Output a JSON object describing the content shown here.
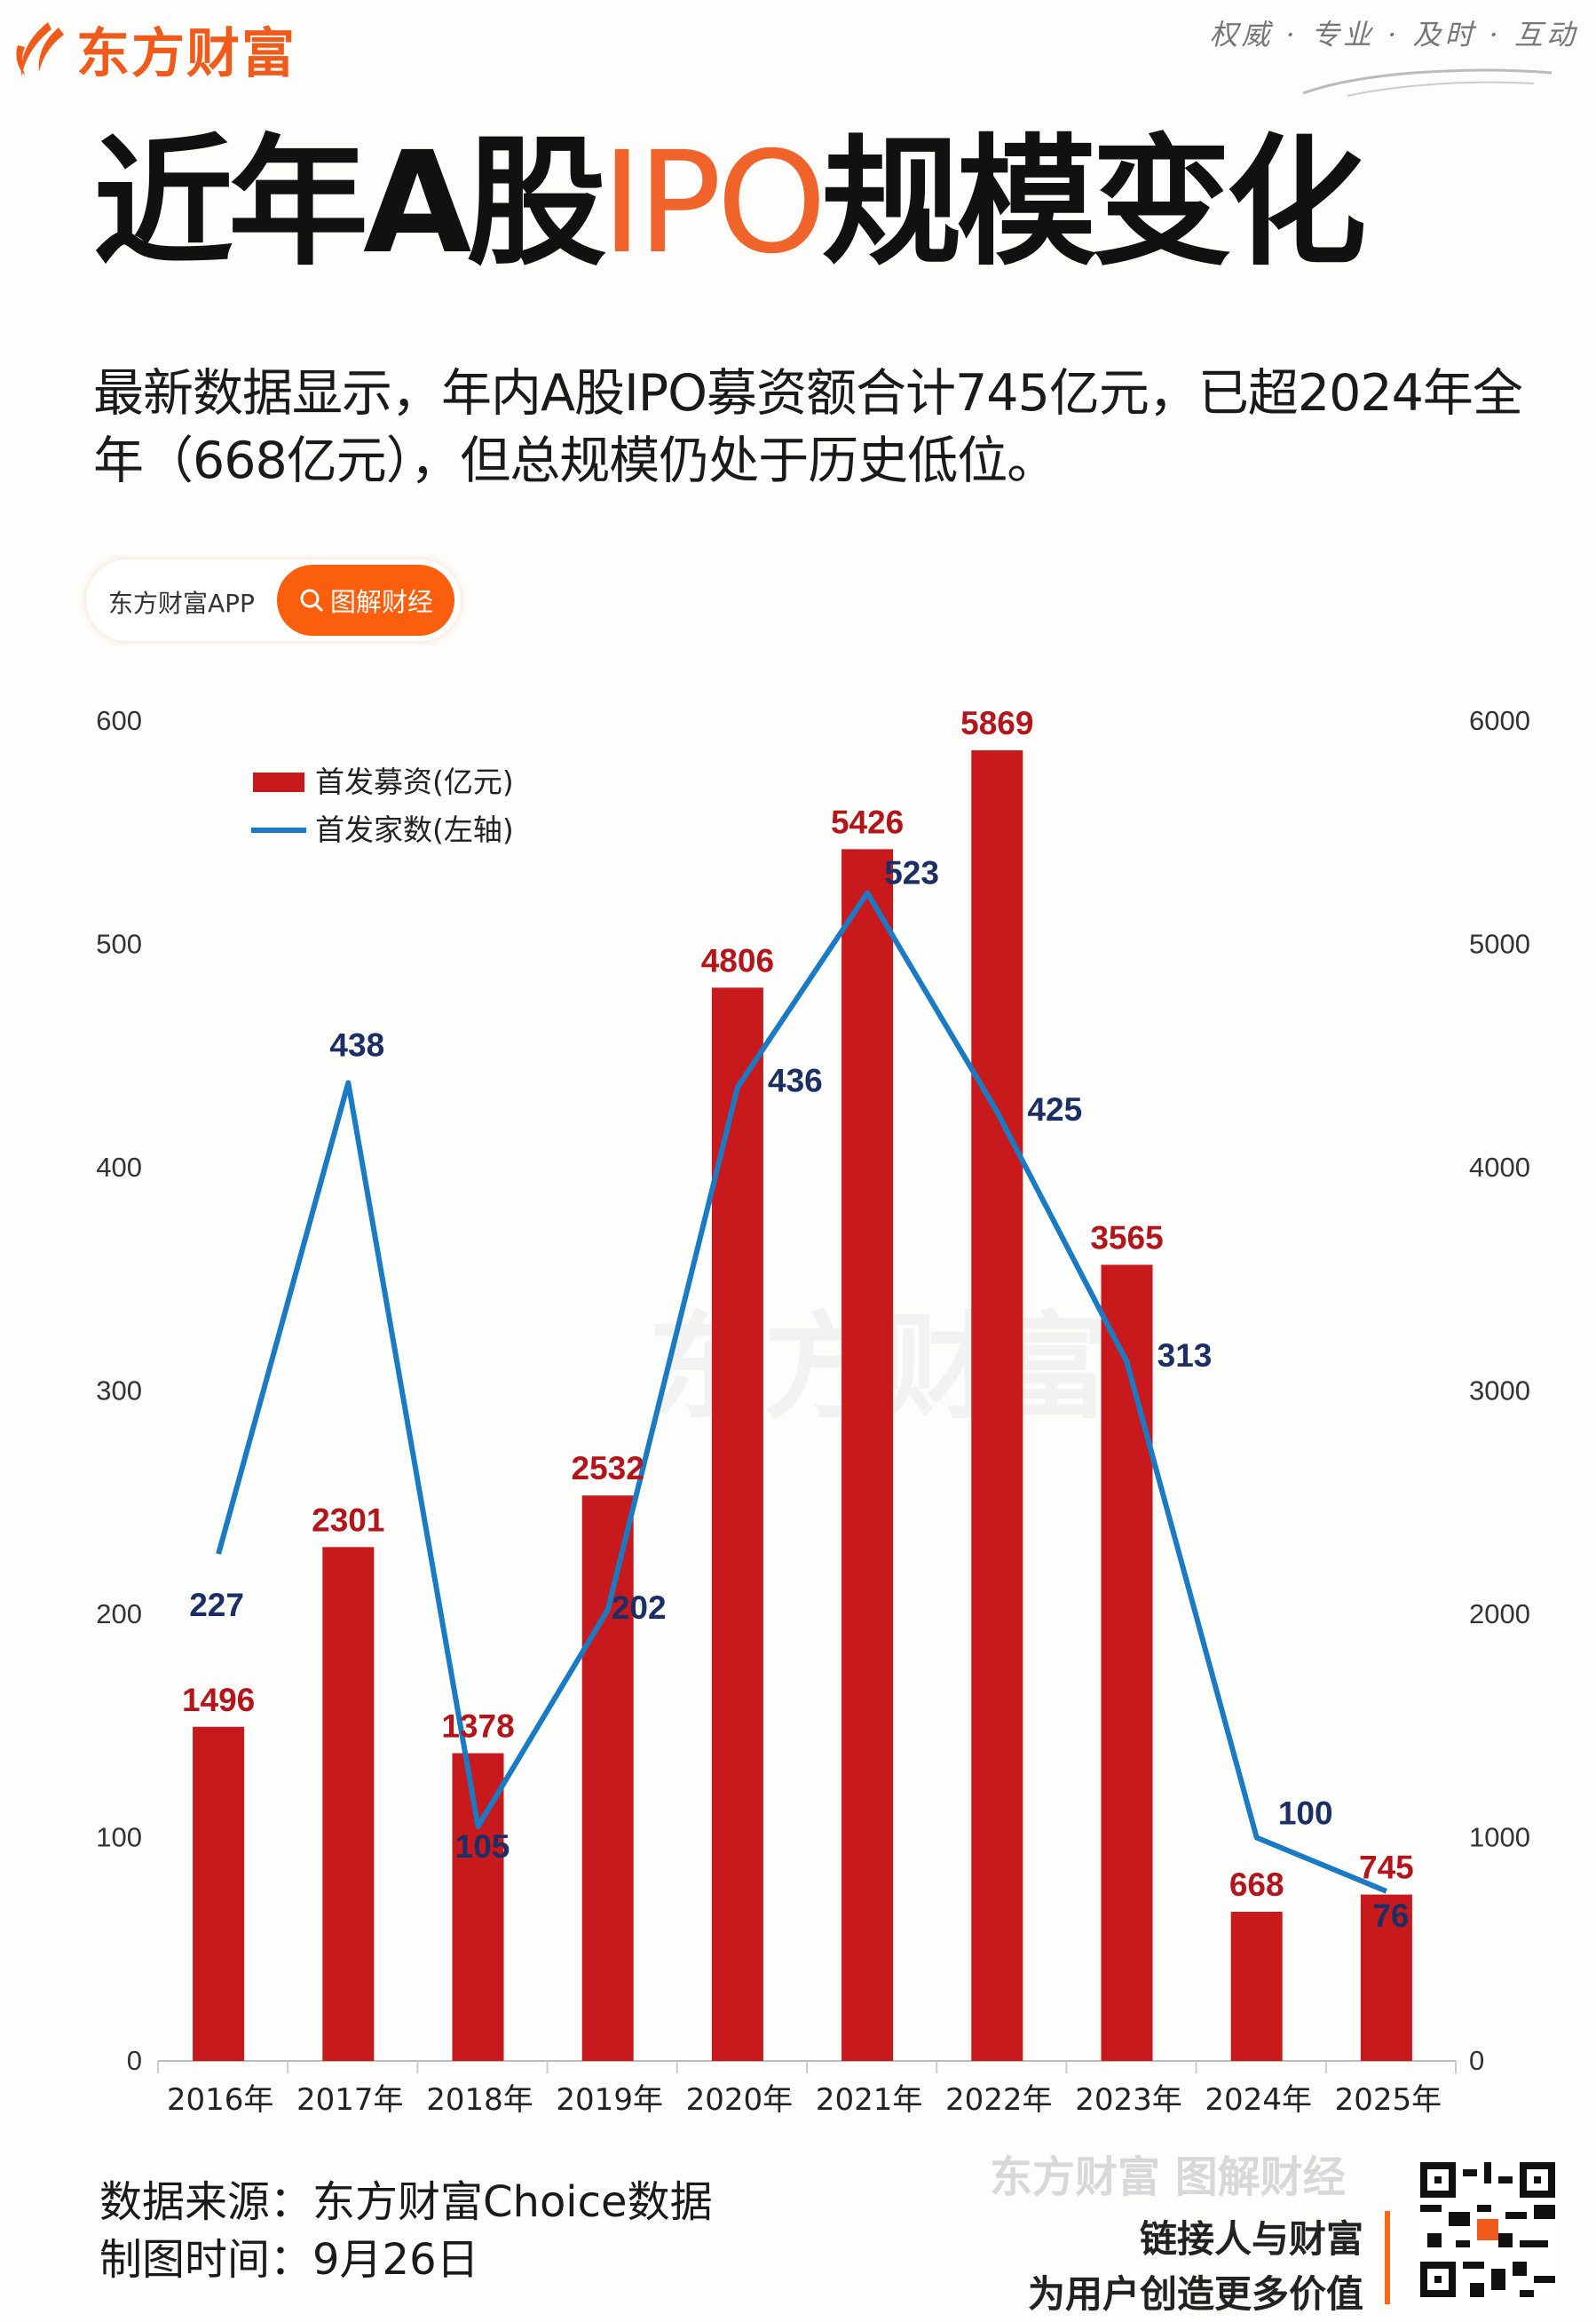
{
  "header": {
    "brand": "东方财富",
    "slogan": "权威 · 专业 · 及时 · 互动"
  },
  "title": {
    "part1": "近年A股",
    "highlight": "IPO",
    "part2": "规模变化"
  },
  "subtitle": "最新数据显示，年内A股IPO募资额合计745亿元，已超2024年全年（668亿元），但总规模仍处于历史低位。",
  "pill": {
    "label": "东方财富APP",
    "button": "图解财经"
  },
  "colors": {
    "bar": "#c8191c",
    "line": "#1a7ac4",
    "bar_label": "#b3151a",
    "line_label": "#1b2f66",
    "accent": "#f05a1a"
  },
  "chart_data": {
    "type": "bar",
    "title": "近年A股IPO规模变化",
    "categories": [
      "2016年",
      "2017年",
      "2018年",
      "2019年",
      "2020年",
      "2021年",
      "2022年",
      "2023年",
      "2024年",
      "2025年"
    ],
    "series": [
      {
        "name": "首发募资(亿元)",
        "type": "bar",
        "axis": "right",
        "values": [
          1496,
          2301,
          1378,
          2532,
          4806,
          5426,
          5869,
          3565,
          668,
          745
        ]
      },
      {
        "name": "首发家数(左轴)",
        "type": "line",
        "axis": "left",
        "values": [
          227,
          438,
          105,
          202,
          436,
          523,
          425,
          313,
          100,
          76
        ]
      }
    ],
    "left_axis": {
      "ticks": [
        "0",
        "100",
        "200",
        "300",
        "400",
        "500",
        "600"
      ],
      "ylim": [
        0,
        600
      ]
    },
    "right_axis": {
      "ticks": [
        "0",
        "1000",
        "2000",
        "3000",
        "4000",
        "5000",
        "6000"
      ],
      "ylim": [
        0,
        6000
      ]
    },
    "legend": "top-left",
    "grid": false
  },
  "footer": {
    "source": "数据来源：东方财富Choice数据",
    "date": "制图时间：9月26日",
    "watermark": "东方财富 图解财经",
    "tagline1": "链接人与财富",
    "tagline2": "为用户创造更多价值"
  }
}
